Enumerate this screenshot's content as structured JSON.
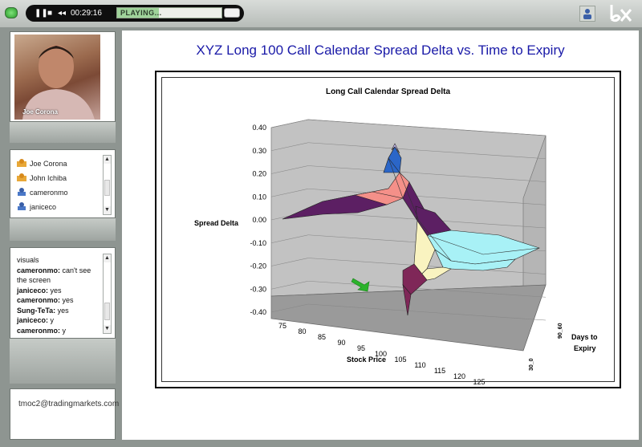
{
  "player": {
    "time": "00:29:16",
    "status": "PLAYING...",
    "progress_fraction": 0.4,
    "pause_glyph": "❚❚",
    "stop_glyph": "■",
    "rewind_glyph": "◂◂"
  },
  "video": {
    "name": "Joe Corona"
  },
  "attendees": [
    "Joe Corona",
    "John Ichiba",
    "cameronmo",
    "janiceco"
  ],
  "chat": [
    {
      "who": "",
      "text": "visuals"
    },
    {
      "who": "cameronmo:",
      "text": " can't see the screen"
    },
    {
      "who": "janiceco:",
      "text": " yes"
    },
    {
      "who": "cameronmo:",
      "text": " yes"
    },
    {
      "who": "Sung-TeTa:",
      "text": " yes"
    },
    {
      "who": "janiceco:",
      "text": " y"
    },
    {
      "who": "cameronmo:",
      "text": " y"
    }
  ],
  "footer_email": "tmoc2@tradingmarkets.com",
  "slide": {
    "title": "XYZ Long 100 Call Calendar Spread Delta vs. Time to Expiry"
  },
  "chart_data": {
    "type": "surface",
    "title": "Long Call Calendar Spread Delta",
    "ylabel": "Spread Delta",
    "xlabel": "Stock Price",
    "zlabel": "Days to Expiry",
    "yticks": [
      "0.40",
      "0.30",
      "0.20",
      "0.10",
      "0.00",
      "-0.10",
      "-0.20",
      "-0.30",
      "-0.40"
    ],
    "ylim": [
      -0.4,
      0.4
    ],
    "xticks": [
      "75",
      "80",
      "85",
      "90",
      "95",
      "100",
      "105",
      "110",
      "115",
      "120",
      "125"
    ],
    "zticks": [
      "90_60",
      "30_0"
    ],
    "band_colors": [
      "#5c1f63",
      "#f49089",
      "#2b66c8",
      "#c7b9f1",
      "#a8f1f6",
      "#f9f3c0",
      "#7f2758"
    ]
  }
}
